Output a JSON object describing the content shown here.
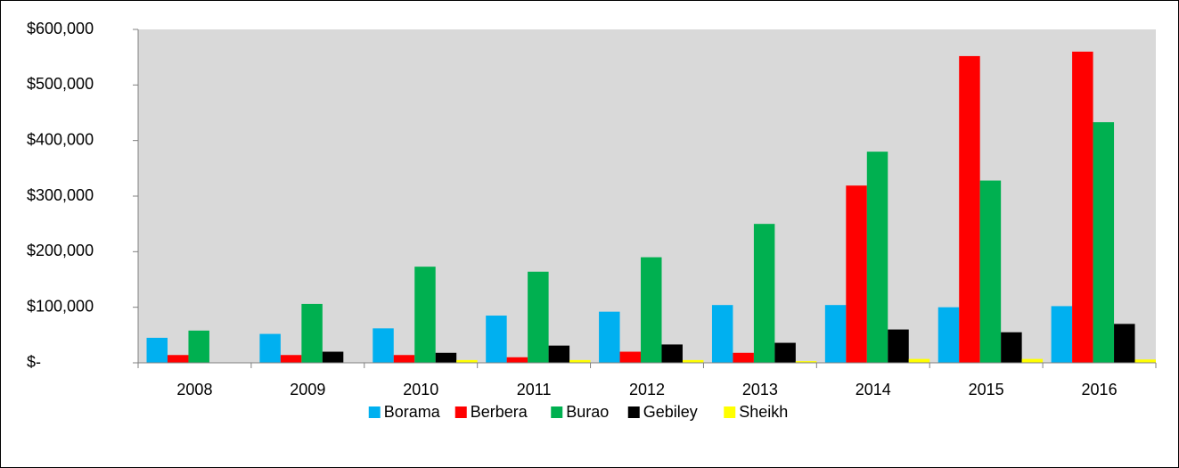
{
  "chart_data": {
    "type": "bar",
    "categories": [
      "2008",
      "2009",
      "2010",
      "2011",
      "2012",
      "2013",
      "2014",
      "2015",
      "2016"
    ],
    "series": [
      {
        "name": "Borama",
        "color": "#00b0f0",
        "values": [
          45000,
          52000,
          62000,
          85000,
          92000,
          104000,
          104000,
          100000,
          102000
        ]
      },
      {
        "name": "Berbera",
        "color": "#ff0000",
        "values": [
          14000,
          14000,
          14000,
          10000,
          20000,
          18000,
          319000,
          552000,
          560000
        ]
      },
      {
        "name": "Burao",
        "color": "#00b050",
        "values": [
          58000,
          106000,
          173000,
          164000,
          190000,
          250000,
          380000,
          328000,
          433000
        ]
      },
      {
        "name": "Gebiley",
        "color": "#000000",
        "values": [
          0,
          20000,
          18000,
          31000,
          33000,
          36000,
          60000,
          55000,
          70000
        ]
      },
      {
        "name": "Sheikh",
        "color": "#ffff00",
        "values": [
          0,
          0,
          5000,
          5000,
          5000,
          3000,
          7000,
          7000,
          6000
        ]
      }
    ],
    "ylim": [
      0,
      600000
    ],
    "yticks": [
      {
        "value": 0,
        "label": "$-"
      },
      {
        "value": 100000,
        "label": "$100,000"
      },
      {
        "value": 200000,
        "label": "$200,000"
      },
      {
        "value": 300000,
        "label": "$300,000"
      },
      {
        "value": 400000,
        "label": "$400,000"
      },
      {
        "value": 500000,
        "label": "$500,000"
      },
      {
        "value": 600000,
        "label": "$600,000"
      }
    ],
    "plot_background": "#d9d9d9",
    "legend": "bottom"
  }
}
